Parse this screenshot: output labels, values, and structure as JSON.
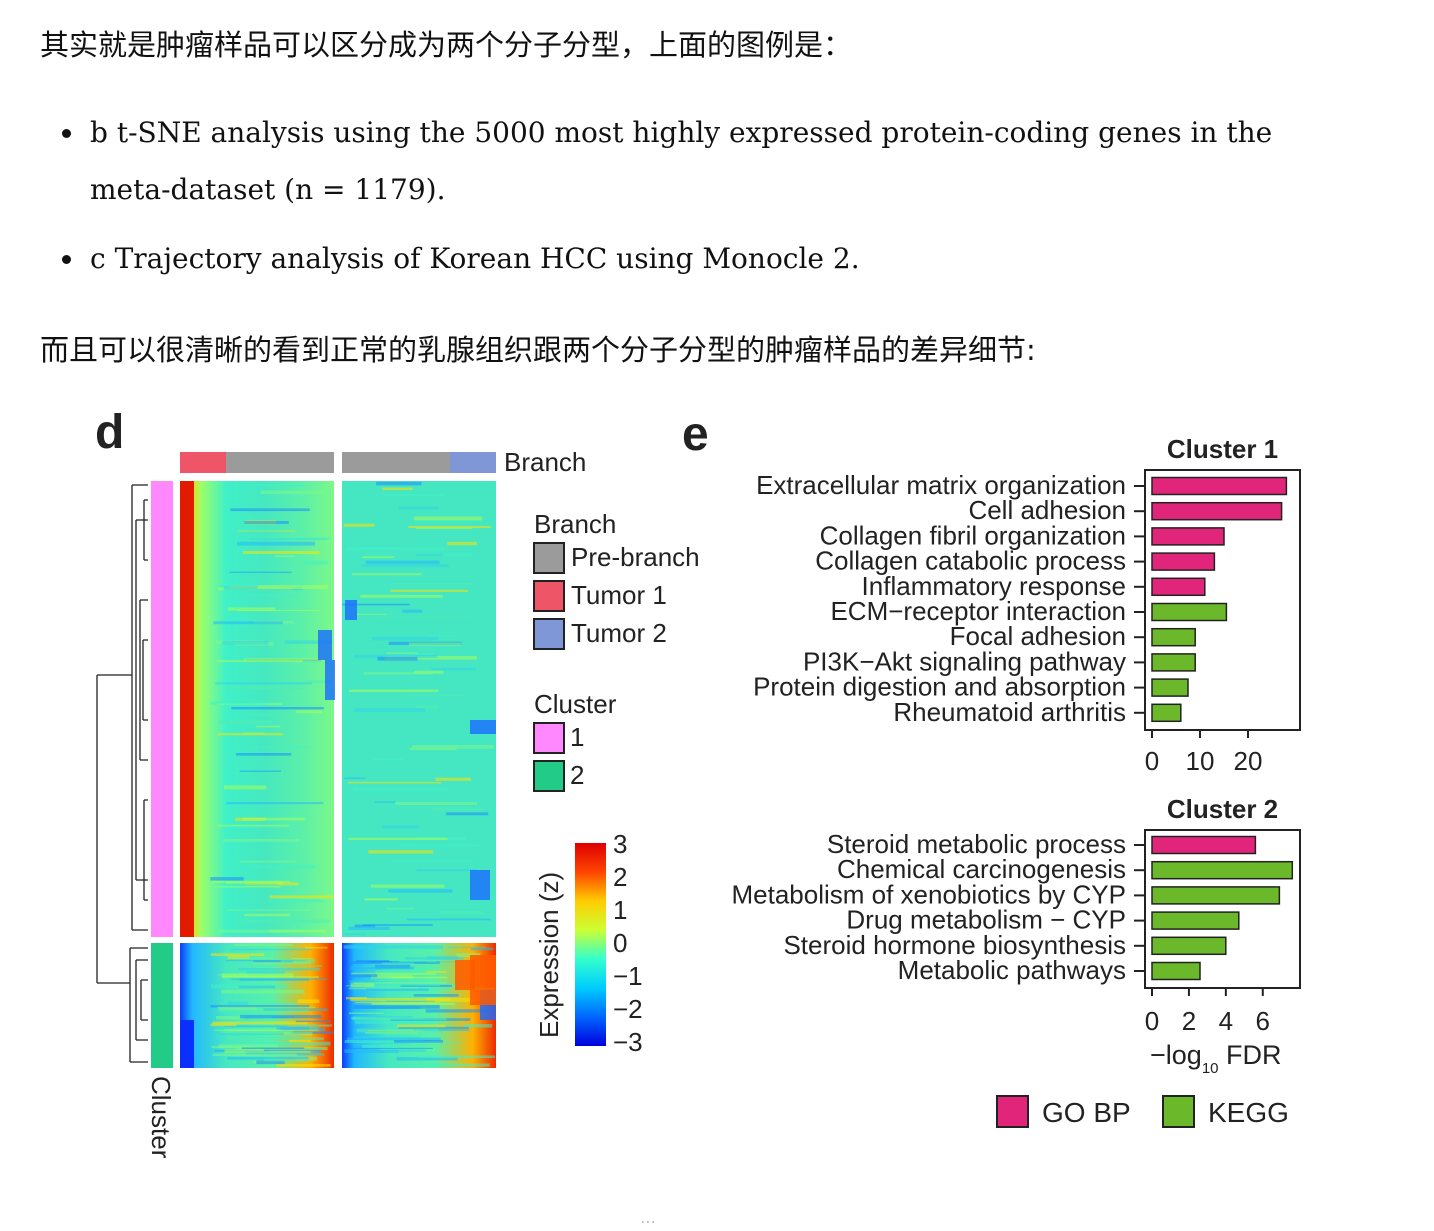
{
  "article": {
    "intro_line": "其实就是肿瘤样品可以区分成为两个分子分型，上面的图例是：",
    "bullets": [
      "b t-SNE analysis using the 5000 most highly expressed protein-coding genes in the meta-dataset (n = 1179).",
      "c Trajectory analysis of Korean HCC using Monocle 2."
    ],
    "second_line": "而且可以很清晰的看到正常的乳腺组织跟两个分子分型的肿瘤样品的差异细节:"
  },
  "figure": {
    "panel_d": {
      "letter": "d",
      "branch_track_label": "Branch",
      "cluster_axis_label": "Cluster",
      "legend_branch_title": "Branch",
      "legend_branch_items": [
        {
          "label": "Pre-branch",
          "color": "#9b9b9b"
        },
        {
          "label": "Tumor 1",
          "color": "#ee5566"
        },
        {
          "label": "Tumor 2",
          "color": "#7f97d6"
        }
      ],
      "legend_cluster_title": "Cluster",
      "legend_cluster_items": [
        {
          "label": "1",
          "color": "#ff88ff"
        },
        {
          "label": "2",
          "color": "#22cc88"
        }
      ],
      "colorbar_title": "Expression (z)",
      "colorbar_ticks": [
        "3",
        "2",
        "1",
        "0",
        "−1",
        "−2",
        "−3"
      ],
      "colorbar_colors": [
        "#dd0000",
        "#ff4400",
        "#ffcc00",
        "#ccff33",
        "#33ffcc",
        "#00ccff",
        "#0066ff",
        "#0000dd"
      ]
    },
    "panel_e": {
      "letter": "e",
      "xlabel": "−log",
      "xlabel_sub": "10",
      "xlabel_tail": " FDR",
      "legend": [
        {
          "label": "GO BP",
          "color": "#e0257a"
        },
        {
          "label": "KEGG",
          "color": "#6bb82a"
        }
      ]
    }
  },
  "chart_data": [
    {
      "type": "bar",
      "orientation": "horizontal",
      "title": "Cluster 1",
      "xlabel": "−log10 FDR",
      "xlim": [
        0,
        30
      ],
      "xticks": [
        0,
        10,
        20
      ],
      "categories": [
        "Extracellular matrix organization",
        "Cell adhesion",
        "Collagen fibril organization",
        "Collagen catabolic process",
        "Inflammatory response",
        "ECM−receptor interaction",
        "Focal adhesion",
        "PI3K−Akt signaling pathway",
        "Protein digestion and absorption",
        "Rheumatoid arthritis"
      ],
      "values": [
        28,
        27,
        15,
        13,
        11,
        15.5,
        9,
        9,
        7.5,
        6
      ],
      "source": [
        "GO BP",
        "GO BP",
        "GO BP",
        "GO BP",
        "GO BP",
        "KEGG",
        "KEGG",
        "KEGG",
        "KEGG",
        "KEGG"
      ]
    },
    {
      "type": "bar",
      "orientation": "horizontal",
      "title": "Cluster 2",
      "xlabel": "−log10 FDR",
      "xlim": [
        0,
        7.8
      ],
      "xticks": [
        0,
        2,
        4,
        6
      ],
      "categories": [
        "Steroid metabolic process",
        "Chemical carcinogenesis",
        "Metabolism of xenobiotics by CYP",
        "Drug metabolism − CYP",
        "Steroid hormone biosynthesis",
        "Metabolic pathways"
      ],
      "values": [
        5.6,
        7.6,
        6.9,
        4.7,
        4.0,
        2.6
      ],
      "source": [
        "GO BP",
        "KEGG",
        "KEGG",
        "KEGG",
        "KEGG",
        "KEGG"
      ]
    }
  ]
}
